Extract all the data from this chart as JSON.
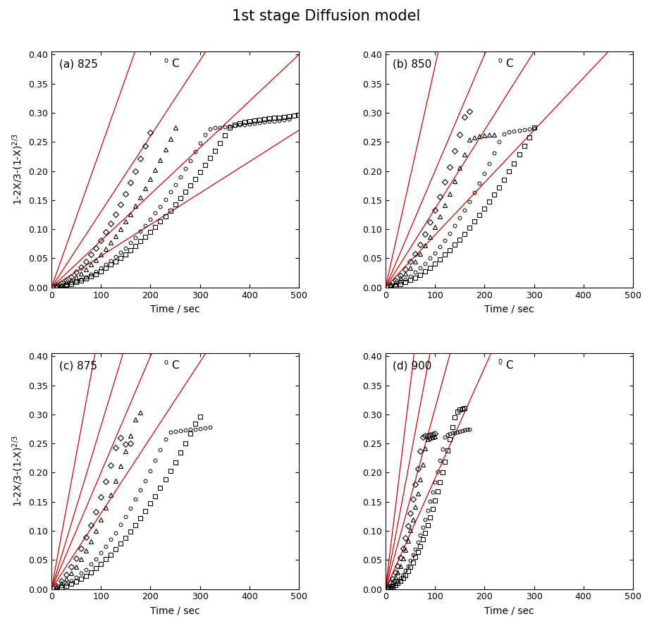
{
  "title": "1st stage Diffusion model",
  "ylabel": "1-2X/3-(1-X)$^{2/3}$",
  "xlabel": "Time / sec",
  "line_color": "#cc0000",
  "subplots": [
    {
      "label": "(a)",
      "temp": "825",
      "sup": "o",
      "regression_slopes": [
        0.0024,
        0.0013,
        0.0008,
        0.00054
      ],
      "series": [
        {
          "marker": "D",
          "xdata": [
            10,
            20,
            30,
            40,
            50,
            60,
            70,
            80,
            90,
            100,
            110,
            120,
            130,
            140,
            150,
            160,
            170,
            180,
            190,
            200
          ],
          "ydata": [
            0.003,
            0.007,
            0.012,
            0.018,
            0.026,
            0.035,
            0.045,
            0.056,
            0.068,
            0.081,
            0.095,
            0.11,
            0.126,
            0.143,
            0.161,
            0.18,
            0.2,
            0.221,
            0.243,
            0.266
          ]
        },
        {
          "marker": "^",
          "xdata": [
            10,
            20,
            30,
            40,
            50,
            60,
            70,
            80,
            90,
            100,
            110,
            120,
            130,
            140,
            150,
            160,
            170,
            180,
            190,
            200,
            210,
            220,
            230,
            240,
            250
          ],
          "ydata": [
            0.002,
            0.005,
            0.009,
            0.013,
            0.018,
            0.024,
            0.031,
            0.039,
            0.047,
            0.056,
            0.066,
            0.077,
            0.088,
            0.1,
            0.113,
            0.126,
            0.14,
            0.155,
            0.17,
            0.186,
            0.202,
            0.219,
            0.237,
            0.255,
            0.274
          ]
        },
        {
          "marker": "o",
          "xdata": [
            10,
            20,
            30,
            40,
            50,
            60,
            70,
            80,
            90,
            100,
            110,
            120,
            130,
            140,
            150,
            160,
            170,
            180,
            190,
            200,
            210,
            220,
            230,
            240,
            250,
            260,
            270,
            280,
            290,
            300,
            310,
            320,
            330,
            340,
            350,
            360,
            370,
            380,
            390,
            400,
            410,
            420,
            430,
            440,
            450,
            460,
            470,
            480
          ],
          "ydata": [
            0.001,
            0.003,
            0.005,
            0.008,
            0.011,
            0.014,
            0.018,
            0.023,
            0.028,
            0.033,
            0.039,
            0.046,
            0.053,
            0.06,
            0.068,
            0.077,
            0.086,
            0.096,
            0.106,
            0.117,
            0.128,
            0.139,
            0.151,
            0.164,
            0.177,
            0.19,
            0.204,
            0.218,
            0.233,
            0.248,
            0.263,
            0.272,
            0.274,
            0.275,
            0.276,
            0.277,
            0.278,
            0.279,
            0.28,
            0.281,
            0.282,
            0.283,
            0.284,
            0.285,
            0.286,
            0.287,
            0.288,
            0.289
          ]
        },
        {
          "marker": "s",
          "xdata": [
            10,
            20,
            30,
            40,
            50,
            60,
            70,
            80,
            90,
            100,
            110,
            120,
            130,
            140,
            150,
            160,
            170,
            180,
            190,
            200,
            210,
            220,
            230,
            240,
            250,
            260,
            270,
            280,
            290,
            300,
            310,
            320,
            330,
            340,
            350,
            360,
            370,
            380,
            390,
            400,
            410,
            420,
            430,
            440,
            450,
            460,
            470,
            480,
            490,
            500
          ],
          "ydata": [
            0.001,
            0.002,
            0.004,
            0.006,
            0.009,
            0.012,
            0.015,
            0.019,
            0.023,
            0.028,
            0.033,
            0.039,
            0.044,
            0.05,
            0.057,
            0.064,
            0.071,
            0.079,
            0.087,
            0.095,
            0.104,
            0.113,
            0.122,
            0.132,
            0.142,
            0.153,
            0.164,
            0.175,
            0.186,
            0.198,
            0.21,
            0.222,
            0.235,
            0.248,
            0.261,
            0.274,
            0.28,
            0.282,
            0.284,
            0.286,
            0.287,
            0.288,
            0.289,
            0.29,
            0.291,
            0.292,
            0.293,
            0.294,
            0.295,
            0.296
          ]
        }
      ]
    },
    {
      "label": "(b)",
      "temp": "850",
      "sup": "o",
      "regression_slopes": [
        0.0038,
        0.002,
        0.00135,
        0.0009
      ],
      "series": [
        {
          "marker": "D",
          "xdata": [
            10,
            20,
            30,
            40,
            50,
            60,
            70,
            80,
            90,
            100,
            110,
            120,
            130,
            140,
            150,
            160,
            170
          ],
          "ydata": [
            0.005,
            0.012,
            0.02,
            0.031,
            0.044,
            0.058,
            0.074,
            0.092,
            0.112,
            0.133,
            0.156,
            0.181,
            0.207,
            0.235,
            0.263,
            0.293,
            0.302
          ]
        },
        {
          "marker": "^",
          "xdata": [
            10,
            20,
            30,
            40,
            50,
            60,
            70,
            80,
            90,
            100,
            110,
            120,
            130,
            140,
            150,
            160,
            170,
            180,
            190,
            200,
            210,
            220
          ],
          "ydata": [
            0.004,
            0.009,
            0.016,
            0.024,
            0.034,
            0.045,
            0.058,
            0.072,
            0.087,
            0.104,
            0.122,
            0.141,
            0.161,
            0.183,
            0.205,
            0.229,
            0.254,
            0.258,
            0.26,
            0.261,
            0.262,
            0.263
          ]
        },
        {
          "marker": "o",
          "xdata": [
            10,
            20,
            30,
            40,
            50,
            60,
            70,
            80,
            90,
            100,
            110,
            120,
            130,
            140,
            150,
            160,
            170,
            180,
            190,
            200,
            210,
            220,
            230,
            240,
            250,
            260,
            270,
            280,
            290,
            300
          ],
          "ydata": [
            0.002,
            0.005,
            0.009,
            0.014,
            0.019,
            0.026,
            0.033,
            0.041,
            0.05,
            0.059,
            0.07,
            0.081,
            0.093,
            0.106,
            0.119,
            0.133,
            0.148,
            0.163,
            0.179,
            0.196,
            0.213,
            0.231,
            0.25,
            0.264,
            0.267,
            0.269,
            0.27,
            0.271,
            0.272,
            0.273
          ]
        },
        {
          "marker": "s",
          "xdata": [
            10,
            20,
            30,
            40,
            50,
            60,
            70,
            80,
            90,
            100,
            110,
            120,
            130,
            140,
            150,
            160,
            170,
            180,
            190,
            200,
            210,
            220,
            230,
            240,
            250,
            260,
            270,
            280,
            290,
            300
          ],
          "ydata": [
            0.001,
            0.003,
            0.006,
            0.009,
            0.013,
            0.017,
            0.022,
            0.028,
            0.034,
            0.041,
            0.048,
            0.056,
            0.064,
            0.073,
            0.082,
            0.092,
            0.102,
            0.113,
            0.124,
            0.135,
            0.147,
            0.159,
            0.172,
            0.185,
            0.199,
            0.213,
            0.228,
            0.243,
            0.258,
            0.274
          ]
        }
      ]
    },
    {
      "label": "(c)",
      "temp": "875",
      "sup": "o",
      "regression_slopes": [
        0.0046,
        0.0028,
        0.002,
        0.0013
      ],
      "series": [
        {
          "marker": "D",
          "xdata": [
            10,
            20,
            30,
            40,
            50,
            60,
            70,
            80,
            90,
            100,
            110,
            120,
            130,
            140,
            150,
            160
          ],
          "ydata": [
            0.006,
            0.014,
            0.025,
            0.038,
            0.053,
            0.07,
            0.089,
            0.11,
            0.133,
            0.158,
            0.185,
            0.213,
            0.243,
            0.26,
            0.249,
            0.25
          ]
        },
        {
          "marker": "^",
          "xdata": [
            10,
            20,
            30,
            40,
            50,
            60,
            70,
            80,
            90,
            100,
            110,
            120,
            130,
            140,
            150,
            160,
            170,
            180
          ],
          "ydata": [
            0.004,
            0.01,
            0.018,
            0.027,
            0.038,
            0.051,
            0.066,
            0.082,
            0.1,
            0.119,
            0.14,
            0.162,
            0.186,
            0.211,
            0.237,
            0.264,
            0.292,
            0.303
          ]
        },
        {
          "marker": "o",
          "xdata": [
            10,
            20,
            30,
            40,
            50,
            60,
            70,
            80,
            90,
            100,
            110,
            120,
            130,
            140,
            150,
            160,
            170,
            180,
            190,
            200,
            210,
            220,
            230,
            240,
            250,
            260,
            270,
            280,
            290,
            300,
            310,
            320
          ],
          "ydata": [
            0.002,
            0.005,
            0.009,
            0.014,
            0.02,
            0.027,
            0.034,
            0.043,
            0.052,
            0.062,
            0.073,
            0.085,
            0.097,
            0.111,
            0.124,
            0.139,
            0.154,
            0.17,
            0.186,
            0.203,
            0.221,
            0.239,
            0.258,
            0.27,
            0.271,
            0.272,
            0.273,
            0.274,
            0.275,
            0.276,
            0.277,
            0.278
          ]
        },
        {
          "marker": "s",
          "xdata": [
            10,
            20,
            30,
            40,
            50,
            60,
            70,
            80,
            90,
            100,
            110,
            120,
            130,
            140,
            150,
            160,
            170,
            180,
            190,
            200,
            210,
            220,
            230,
            240,
            250,
            260,
            270,
            280,
            290,
            300
          ],
          "ydata": [
            0.001,
            0.003,
            0.006,
            0.009,
            0.013,
            0.018,
            0.023,
            0.029,
            0.036,
            0.043,
            0.051,
            0.059,
            0.068,
            0.078,
            0.088,
            0.099,
            0.11,
            0.122,
            0.134,
            0.147,
            0.16,
            0.174,
            0.188,
            0.203,
            0.218,
            0.234,
            0.25,
            0.267,
            0.284,
            0.296
          ]
        }
      ]
    },
    {
      "label": "(d)",
      "temp": "900",
      "sup": "0",
      "regression_slopes": [
        0.007,
        0.0045,
        0.0031,
        0.0019
      ],
      "series": [
        {
          "marker": "D",
          "xdata": [
            5,
            10,
            15,
            20,
            25,
            30,
            35,
            40,
            45,
            50,
            55,
            60,
            65,
            70,
            75,
            80,
            85,
            90,
            95,
            100
          ],
          "ydata": [
            0.004,
            0.01,
            0.018,
            0.028,
            0.04,
            0.054,
            0.07,
            0.088,
            0.108,
            0.13,
            0.154,
            0.18,
            0.207,
            0.237,
            0.261,
            0.263,
            0.264,
            0.265,
            0.266,
            0.267
          ]
        },
        {
          "marker": "^",
          "xdata": [
            5,
            10,
            15,
            20,
            25,
            30,
            35,
            40,
            45,
            50,
            55,
            60,
            65,
            70,
            75,
            80,
            85,
            90,
            95,
            100
          ],
          "ydata": [
            0.003,
            0.007,
            0.013,
            0.02,
            0.029,
            0.04,
            0.053,
            0.067,
            0.083,
            0.101,
            0.12,
            0.141,
            0.164,
            0.188,
            0.214,
            0.242,
            0.258,
            0.26,
            0.261,
            0.262
          ]
        },
        {
          "marker": "o",
          "xdata": [
            5,
            10,
            15,
            20,
            25,
            30,
            35,
            40,
            45,
            50,
            55,
            60,
            65,
            70,
            75,
            80,
            85,
            90,
            95,
            100,
            105,
            110,
            115,
            120,
            125,
            130,
            135,
            140,
            145,
            150,
            155,
            160,
            165,
            170
          ],
          "ydata": [
            0.001,
            0.003,
            0.006,
            0.009,
            0.014,
            0.019,
            0.025,
            0.032,
            0.04,
            0.049,
            0.059,
            0.069,
            0.081,
            0.093,
            0.106,
            0.12,
            0.135,
            0.151,
            0.167,
            0.184,
            0.202,
            0.221,
            0.24,
            0.261,
            0.265,
            0.267,
            0.268,
            0.269,
            0.27,
            0.271,
            0.272,
            0.273,
            0.274,
            0.275
          ]
        },
        {
          "marker": "s",
          "xdata": [
            5,
            10,
            15,
            20,
            25,
            30,
            35,
            40,
            45,
            50,
            55,
            60,
            65,
            70,
            75,
            80,
            85,
            90,
            95,
            100,
            105,
            110,
            115,
            120,
            125,
            130,
            135,
            140,
            145,
            150,
            155,
            160
          ],
          "ydata": [
            0.001,
            0.002,
            0.004,
            0.007,
            0.01,
            0.014,
            0.019,
            0.024,
            0.031,
            0.038,
            0.046,
            0.055,
            0.064,
            0.074,
            0.085,
            0.097,
            0.11,
            0.123,
            0.137,
            0.152,
            0.168,
            0.184,
            0.201,
            0.219,
            0.238,
            0.257,
            0.278,
            0.295,
            0.305,
            0.308,
            0.31,
            0.311
          ]
        }
      ]
    }
  ]
}
